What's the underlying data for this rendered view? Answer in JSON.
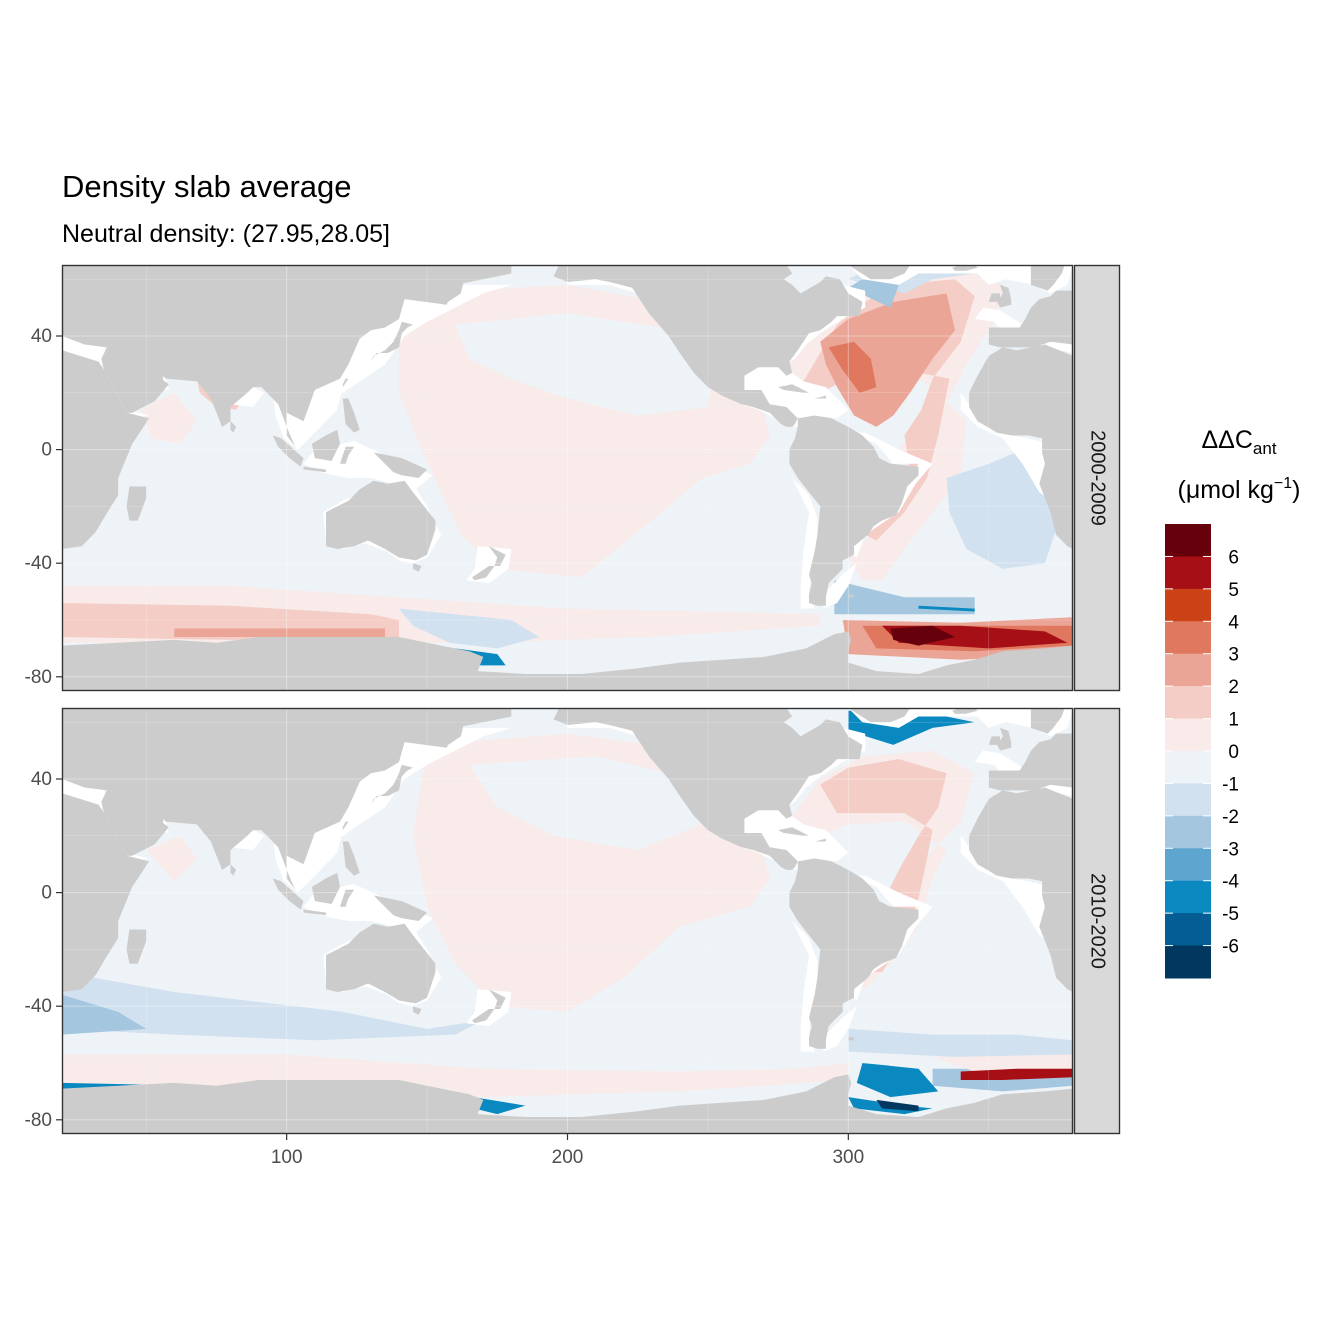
{
  "chart_data": {
    "type": "heatmap",
    "title": "Density slab average",
    "subtitle": "Neutral density: (27.95,28.05]",
    "xlim": [
      20,
      380
    ],
    "ylim": [
      -85,
      65
    ],
    "x_ticks": [
      100,
      200,
      300
    ],
    "y_ticks": [
      40,
      0,
      -40,
      -80
    ],
    "grid": true,
    "facets": [
      "2000-2009",
      "2010-2020"
    ],
    "legend": {
      "title_main": "ΔΔC",
      "title_sub": "ant",
      "units_prefix": "(μmol kg",
      "units_sup": "−1",
      "units_suffix": ")",
      "placement": "right",
      "labels": [
        "6",
        "5",
        "4",
        "3",
        "2",
        "1",
        "0",
        "-1",
        "-2",
        "-3",
        "-4",
        "-5",
        "-6"
      ],
      "colors": [
        "#67000d",
        "#a50f15",
        "#cb4217",
        "#e0775f",
        "#eba596",
        "#f4cdc6",
        "#f8ebea",
        "#eef3f7",
        "#d2e1ef",
        "#a5c6df",
        "#5ea6d0",
        "#0a88c0",
        "#045d93",
        "#02375f"
      ]
    },
    "map_colors": {
      "land": "#cccccc",
      "no_data": "#ffffff",
      "neutral": "#eef3f7",
      "slight_pos": "#f8ebea",
      "pos": "#f4cdc6",
      "mid_pos": "#eba596",
      "strong_pos": "#e0775f",
      "very_strong_pos": "#a50f15",
      "extreme_pos": "#67000d",
      "slight_neg": "#d2e1ef",
      "neg": "#a5c6df",
      "strong_neg": "#0a88c0",
      "extreme_neg": "#02375f"
    }
  }
}
